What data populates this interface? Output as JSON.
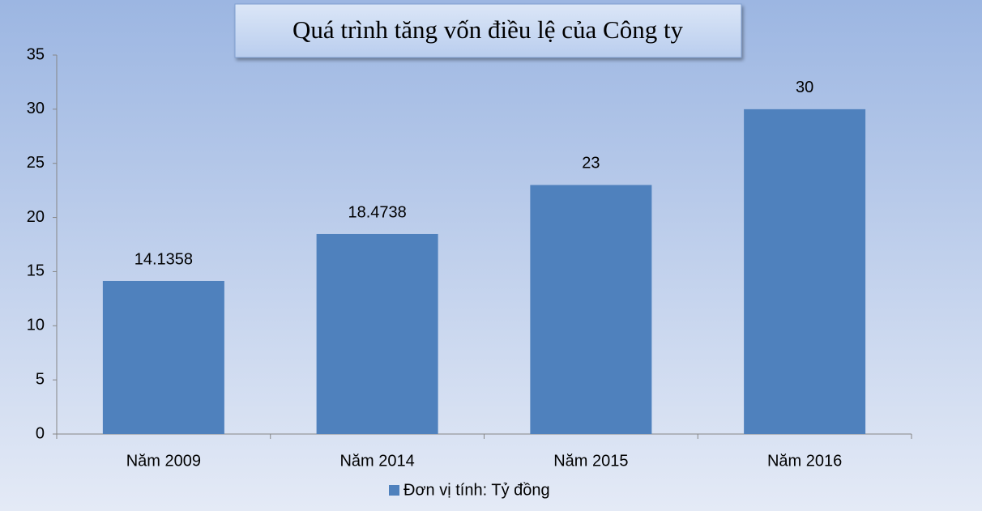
{
  "chart_data": {
    "type": "bar",
    "title": "Quá trình tăng vốn điều lệ của Công ty",
    "categories": [
      "Năm 2009",
      "Năm 2014",
      "Năm 2015",
      "Năm 2016"
    ],
    "series": [
      {
        "name": "Đơn vị tính: Tỷ đồng",
        "color": "#4f81bd",
        "values": [
          14.1358,
          18.4738,
          23,
          30
        ]
      }
    ],
    "ylim": [
      0,
      35
    ],
    "yticks": [
      0,
      5,
      10,
      15,
      20,
      25,
      30,
      35
    ],
    "grid": false,
    "legend": "bottom"
  }
}
